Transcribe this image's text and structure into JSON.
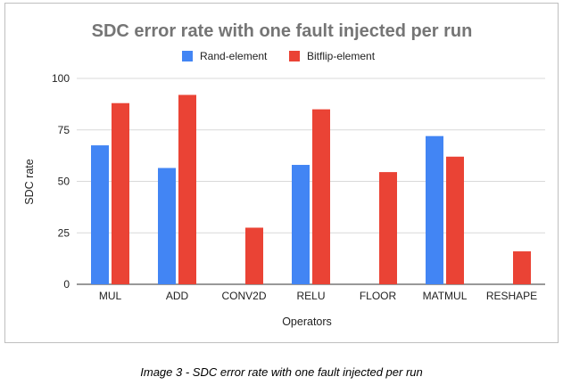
{
  "caption": "Image 3 - SDC error rate with one fault injected per run",
  "chart_data": {
    "type": "bar",
    "title": "SDC error rate with one fault injected per run",
    "xlabel": "Operators",
    "ylabel": "SDC rate",
    "categories": [
      "MUL",
      "ADD",
      "CONV2D",
      "RELU",
      "FLOOR",
      "MATMUL",
      "RESHAPE"
    ],
    "series": [
      {
        "name": "Rand-element",
        "color": "#4285f4",
        "values": [
          67.5,
          56.5,
          null,
          58,
          null,
          72,
          null
        ]
      },
      {
        "name": "Bitflip-element",
        "color": "#ea4335",
        "values": [
          88,
          92,
          27.5,
          85,
          54.5,
          62,
          16
        ]
      }
    ],
    "ylim": [
      0,
      100
    ],
    "yticks": [
      0,
      25,
      50,
      75,
      100
    ],
    "grid": true,
    "legend_position": "top"
  }
}
